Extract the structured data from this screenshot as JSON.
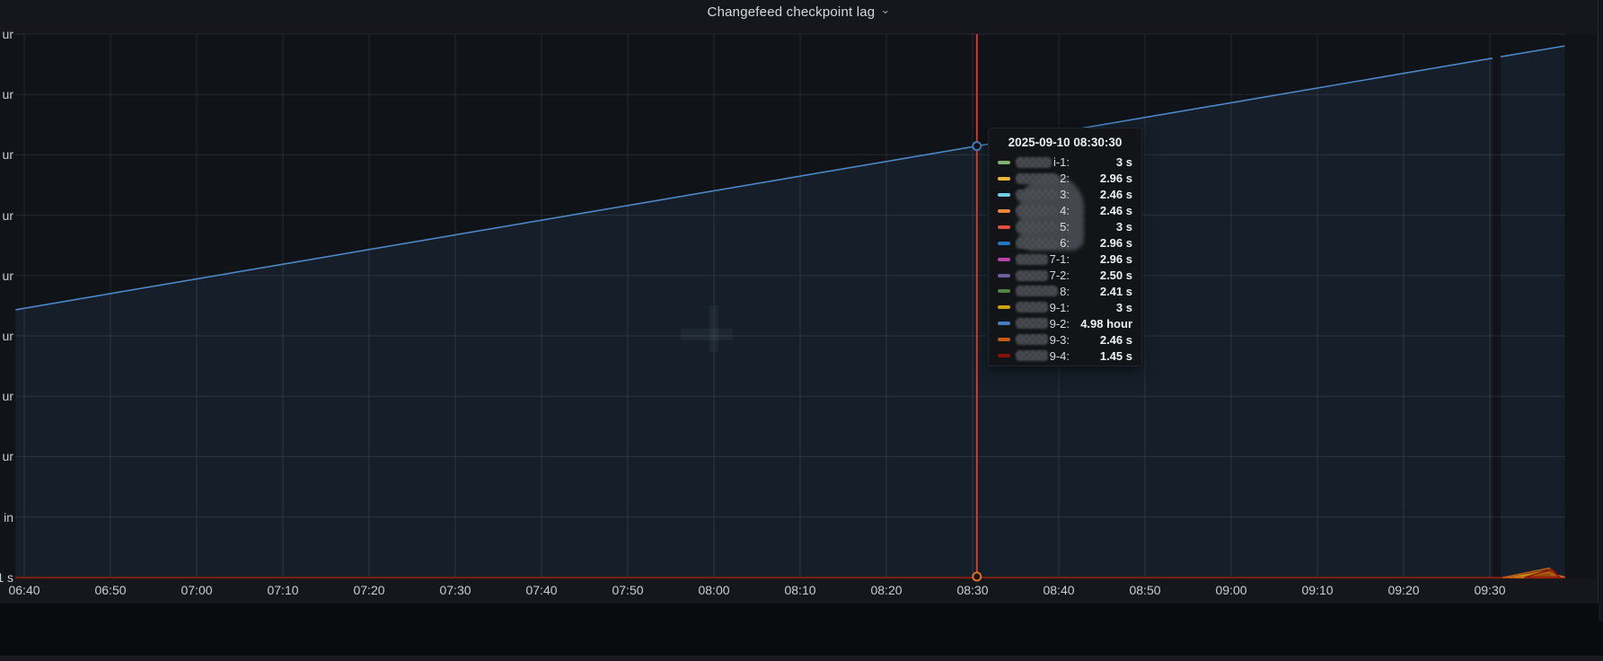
{
  "panel": {
    "title": "Changefeed checkpoint lag",
    "title_menu_icon": "⌄"
  },
  "x_axis": {
    "tick_labels": [
      "06:40",
      "06:50",
      "07:00",
      "07:10",
      "07:20",
      "07:30",
      "07:40",
      "07:50",
      "08:00",
      "08:10",
      "08:20",
      "08:30",
      "08:40",
      "08:50",
      "09:00",
      "09:10",
      "09:20",
      "09:30"
    ]
  },
  "y_axis": {
    "note": "duration labels truncated by left screen edge, only suffixes visible",
    "tick_label_fragments": [
      "ur",
      "ur",
      "ur",
      "ur",
      "ur",
      "ur",
      "ur",
      "ur",
      "in",
      "1 s"
    ]
  },
  "tooltip": {
    "timestamp": "2025-09-10 08:30:30",
    "rows": [
      {
        "suffix": "i-1:",
        "value": "3 s",
        "color": "#7EB26D"
      },
      {
        "suffix": "2:",
        "value": "2.96 s",
        "color": "#EAB839"
      },
      {
        "suffix": "3:",
        "value": "2.46 s",
        "color": "#6ED0E0"
      },
      {
        "suffix": "4:",
        "value": "2.46 s",
        "color": "#EF843C"
      },
      {
        "suffix": "5:",
        "value": "3 s",
        "color": "#E24D42"
      },
      {
        "suffix": "6:",
        "value": "2.96 s",
        "color": "#1F78C1"
      },
      {
        "suffix": "7-1:",
        "value": "2.96 s",
        "color": "#BA43A9"
      },
      {
        "suffix": "7-2:",
        "value": "2.50 s",
        "color": "#705DA0"
      },
      {
        "suffix": "8:",
        "value": "2.41 s",
        "color": "#508642"
      },
      {
        "suffix": "9-1:",
        "value": "3 s",
        "color": "#CCA300"
      },
      {
        "suffix": "9-2:",
        "value": "4.98 hour",
        "color": "#447EBC"
      },
      {
        "suffix": "9-3:",
        "value": "2.46 s",
        "color": "#C15C17"
      },
      {
        "suffix": "9-4:",
        "value": "1.45 s",
        "color": "#890F02"
      }
    ]
  },
  "chart_data": {
    "type": "line",
    "title": "Changefeed checkpoint lag",
    "x_tick_labels": [
      "06:40",
      "06:50",
      "07:00",
      "07:10",
      "07:20",
      "07:30",
      "07:40",
      "07:50",
      "08:00",
      "08:10",
      "08:20",
      "08:30",
      "08:40",
      "08:50",
      "09:00",
      "09:10",
      "09:20",
      "09:30"
    ],
    "x_range": [
      "06:39",
      "09:39"
    ],
    "y_unit": "duration (seconds)",
    "y_range_seconds": [
      0,
      22500
    ],
    "grid": true,
    "legend_position": "none (tooltip only)",
    "cursor": {
      "time": "2025-09-10 08:30:30",
      "nearest_x_tick": "08:30"
    },
    "main_series": {
      "name_suffix": "9-2",
      "color": "#447EBC",
      "value_at_cursor": "4.98 hour",
      "points_minutes_after_0640_vs_seconds": [
        [
          -1.0,
          11090
        ],
        [
          170.3,
          21510
        ],
        [
          171.25,
          21570
        ],
        [
          178.7,
          22020
        ]
      ],
      "gap_after_point_index": 1,
      "description": "checkpoint lag growing roughly linearly from ~3.1 hour at 06:39 to ~6.1 hour at 09:39, short data gap near 09:31"
    },
    "flat_series": {
      "description": "12 additional series flat near 0-3 s along the baseline",
      "colors": [
        "#7EB26D",
        "#EAB839",
        "#6ED0E0",
        "#EF843C",
        "#E24D42",
        "#1F78C1",
        "#BA43A9",
        "#705DA0",
        "#508642",
        "#CCA300",
        "#C15C17",
        "#890F02"
      ],
      "baseline_color": "#801d10",
      "spikes": [
        {
          "color": "#EAB839",
          "points": [
            [
              173.0,
              0
            ],
            [
              177.0,
              210
            ],
            [
              177.9,
              0
            ]
          ]
        },
        {
          "color": "#CCA300",
          "points": [
            [
              172.3,
              0
            ],
            [
              176.8,
              280
            ],
            [
              177.4,
              0
            ]
          ]
        },
        {
          "color": "#C15C17",
          "points": [
            [
              171.5,
              0
            ],
            [
              176.9,
              390
            ],
            [
              177.6,
              120
            ],
            [
              178.7,
              20
            ]
          ]
        },
        {
          "color": "#890F02",
          "points": [
            [
              174.0,
              0
            ],
            [
              177.2,
              340
            ],
            [
              178.1,
              0
            ]
          ]
        }
      ],
      "spike_window": "09:32 - 09:38, peaks up to ~6 min"
    },
    "crosshair": {
      "color": "#e23b30",
      "minutes_after_0640": 110.5
    }
  }
}
